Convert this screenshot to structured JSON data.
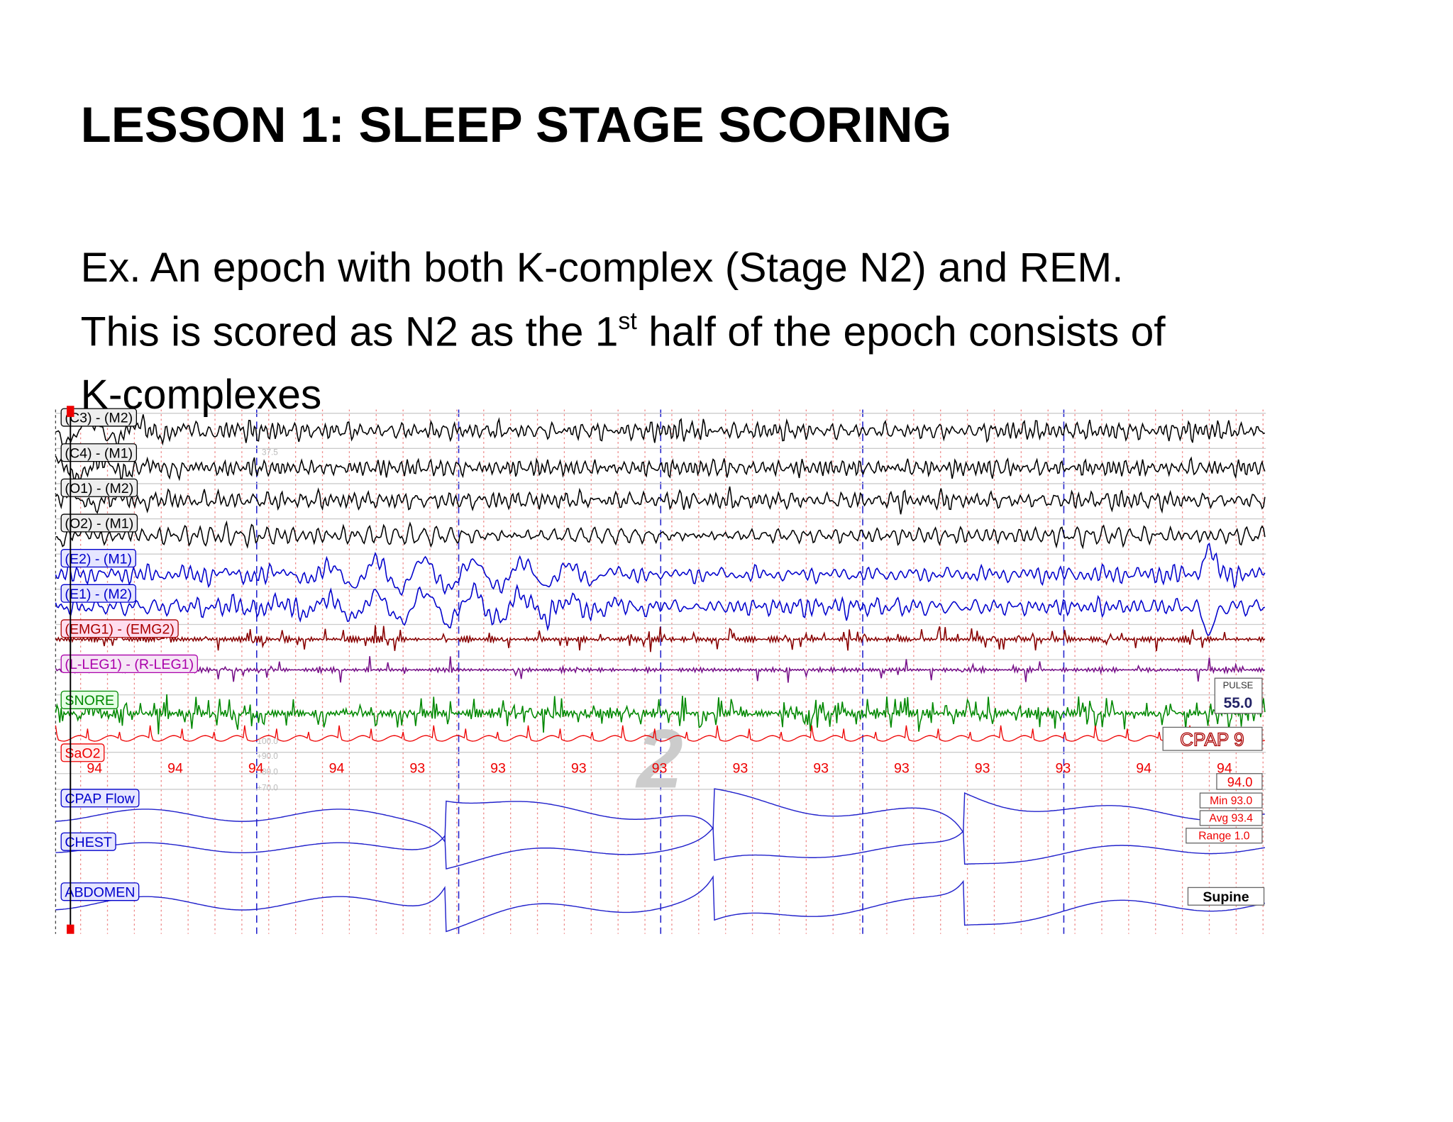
{
  "header": {
    "title": "LESSON 1: SLEEP STAGE SCORING"
  },
  "body": {
    "line1": "Ex. An epoch with both K-complex (Stage N2) and REM.",
    "line2": {
      "before": "This is scored as N2 as the 1",
      "sup": "st",
      "after": " half of the epoch consists of"
    },
    "line3": "K-complexes"
  },
  "psg": {
    "channels": [
      "(C3) - (M2)",
      "(C4) - (M1)",
      "(O1) - (M2)",
      "(O2) - (M1)",
      "(E2) - (M1)",
      "(E1) - (M2)",
      "(EMG1) - (EMG2)",
      "(L-LEG1) - (R-LEG1)",
      "SNORE",
      "SaO2",
      "CPAP Flow",
      "CHEST",
      "ABDOMEN"
    ],
    "sao2_values": [
      "94",
      "94",
      "94",
      "94",
      "93",
      "93",
      "93",
      "93",
      "93",
      "93",
      "93",
      "93",
      "93",
      "94",
      "94"
    ],
    "scale_labels": [
      "37.5",
      "100.0",
      "+90.0",
      "80.0",
      "+70.0"
    ],
    "stage": "2",
    "pulse": {
      "label": "PULSE",
      "value": "55.0"
    },
    "cpap": "CPAP 9",
    "sao2_stats": {
      "current": "94.0",
      "min": "Min 93.0",
      "avg": "Avg 93.4",
      "range": "Range 1.0"
    },
    "position": "Supine"
  }
}
